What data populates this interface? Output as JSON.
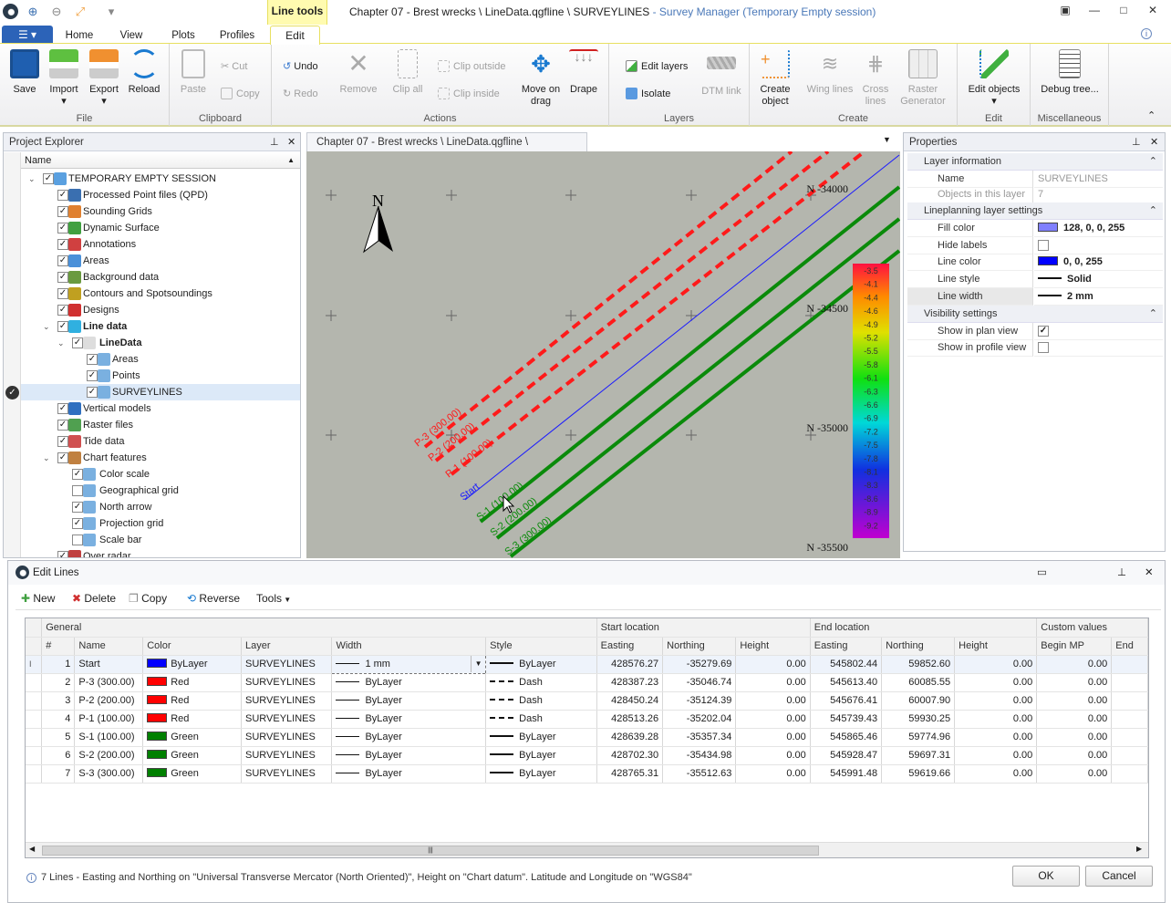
{
  "window": {
    "context_tab": "Line tools",
    "title": "Chapter 07 - Brest wrecks \\ LineData.qgfline \\ SURVEYLINES",
    "subtitle": " - Survey Manager (Temporary Empty session)"
  },
  "ribbon": {
    "tabs": [
      "Home",
      "View",
      "Plots",
      "Profiles",
      "Edit"
    ],
    "active_tab": "Edit",
    "groups": {
      "file": {
        "label": "File",
        "save": "Save",
        "import": "Import",
        "export": "Export",
        "reload": "Reload"
      },
      "clipboard": {
        "label": "Clipboard",
        "paste": "Paste",
        "cut": "Cut",
        "copy": "Copy"
      },
      "actions": {
        "label": "Actions",
        "undo": "Undo",
        "redo": "Redo",
        "remove": "Remove",
        "clip_all": "Clip all",
        "clip_outside": "Clip outside",
        "clip_inside": "Clip inside",
        "move_on_drag": "Move on drag",
        "drape": "Drape"
      },
      "layers": {
        "label": "Layers",
        "edit_layers": "Edit layers",
        "isolate": "Isolate",
        "dtm_link": "DTM link"
      },
      "create": {
        "label": "Create",
        "create_object": "Create object",
        "wing_lines": "Wing lines",
        "cross_lines": "Cross lines",
        "raster_generator": "Raster Generator"
      },
      "edit": {
        "label": "Edit",
        "edit_objects": "Edit objects"
      },
      "misc": {
        "label": "Miscellaneous",
        "debug_tree": "Debug tree..."
      }
    }
  },
  "explorer": {
    "title": "Project Explorer",
    "column": "Name",
    "items": [
      {
        "label": "TEMPORARY EMPTY SESSION",
        "level": 0,
        "expanded": true,
        "checked": true,
        "icon": "session-icon",
        "color": "#5aa0e0"
      },
      {
        "label": "Processed Point files (QPD)",
        "level": 1,
        "checked": true,
        "icon": "point-files-icon",
        "color": "#3a6fb0"
      },
      {
        "label": "Sounding Grids",
        "level": 1,
        "checked": true,
        "icon": "grid-icon",
        "color": "#e08030"
      },
      {
        "label": "Dynamic Surface",
        "level": 1,
        "checked": true,
        "icon": "surface-icon",
        "color": "#40a040"
      },
      {
        "label": "Annotations",
        "level": 1,
        "checked": true,
        "icon": "annotation-icon",
        "color": "#d04040"
      },
      {
        "label": "Areas",
        "level": 1,
        "checked": true,
        "icon": "areas-icon",
        "color": "#4a90d9"
      },
      {
        "label": "Background data",
        "level": 1,
        "checked": true,
        "icon": "background-icon",
        "color": "#6a9a40"
      },
      {
        "label": "Contours and Spotsoundings",
        "level": 1,
        "checked": true,
        "icon": "contours-icon",
        "color": "#c0a020"
      },
      {
        "label": "Designs",
        "level": 1,
        "checked": true,
        "icon": "designs-icon",
        "color": "#d03030"
      },
      {
        "label": "Line data",
        "level": 1,
        "expanded": true,
        "checked": true,
        "bold": true,
        "icon": "line-data-icon",
        "color": "#30b0e0"
      },
      {
        "label": "LineData",
        "level": 2,
        "expanded": true,
        "checked": true,
        "bold": true,
        "icon": "file-icon",
        "color": "#dddddd"
      },
      {
        "label": "Areas",
        "level": 3,
        "checked": true,
        "icon": "layer-icon",
        "color": "#7ab0e0"
      },
      {
        "label": "Points",
        "level": 3,
        "checked": true,
        "icon": "layer-icon",
        "color": "#7ab0e0"
      },
      {
        "label": "SURVEYLINES",
        "level": 3,
        "checked": true,
        "selected": true,
        "icon": "layer-icon",
        "color": "#7ab0e0"
      },
      {
        "label": "Vertical models",
        "level": 1,
        "checked": true,
        "icon": "globe-icon",
        "color": "#3070c0"
      },
      {
        "label": "Raster files",
        "level": 1,
        "checked": true,
        "icon": "raster-icon",
        "color": "#50a050"
      },
      {
        "label": "Tide data",
        "level": 1,
        "checked": true,
        "icon": "tide-icon",
        "color": "#d05050"
      },
      {
        "label": "Chart features",
        "level": 1,
        "expanded": true,
        "checked": true,
        "icon": "chart-features-icon",
        "color": "#c08040"
      },
      {
        "label": "Color scale",
        "level": 2,
        "checked": true,
        "icon": "layer-icon",
        "color": "#7ab0e0"
      },
      {
        "label": "Geographical grid",
        "level": 2,
        "checked": false,
        "icon": "layer-icon",
        "color": "#7ab0e0"
      },
      {
        "label": "North arrow",
        "level": 2,
        "checked": true,
        "icon": "layer-icon",
        "color": "#7ab0e0"
      },
      {
        "label": "Projection grid",
        "level": 2,
        "checked": true,
        "icon": "layer-icon",
        "color": "#7ab0e0"
      },
      {
        "label": "Scale bar",
        "level": 2,
        "checked": false,
        "icon": "layer-icon",
        "color": "#7ab0e0"
      },
      {
        "label": "Over radar",
        "level": 1,
        "checked": true,
        "icon": "radar-icon",
        "color": "#c04040"
      }
    ]
  },
  "map": {
    "tab": "Chapter 07 - Brest wrecks \\ LineData.qgfline \\ SURVEYLINES",
    "north_label": "N",
    "northing_labels": [
      "N -34000",
      "N -34500",
      "N -35000",
      "N -35500"
    ],
    "color_scale": [
      "-3.5",
      "-4.1",
      "-4.4",
      "-4.6",
      "-4.9",
      "-5.2",
      "-5.5",
      "-5.8",
      "-6.1",
      "-6.3",
      "-6.6",
      "-6.9",
      "-7.2",
      "-7.5",
      "-7.8",
      "-8.1",
      "-8.3",
      "-8.6",
      "-8.9",
      "-9.2"
    ],
    "lines": [
      {
        "label": "P-3 (300.00)",
        "color": "#ff1a1a",
        "style": "dash"
      },
      {
        "label": "P-2 (200.00)",
        "color": "#ff1a1a",
        "style": "dash"
      },
      {
        "label": "P-1 (100.00)",
        "color": "#ff1a1a",
        "style": "dash"
      },
      {
        "label": "Start",
        "color": "#1a1aff",
        "style": "thin"
      },
      {
        "label": "S-1 (100.00)",
        "color": "#0a8a0a",
        "style": "solid"
      },
      {
        "label": "S-2 (200.00)",
        "color": "#0a8a0a",
        "style": "solid"
      },
      {
        "label": "S-3 (300.00)",
        "color": "#0a8a0a",
        "style": "solid"
      }
    ]
  },
  "properties": {
    "title": "Properties",
    "sections": {
      "layer_info": "Layer information",
      "lineplanning": "Lineplanning layer settings",
      "visibility": "Visibility settings"
    },
    "name_label": "Name",
    "name_value": "SURVEYLINES",
    "objects_label": "Objects in this layer",
    "objects_value": "7",
    "fill_color_label": "Fill color",
    "fill_color_value": "128, 0, 0, 255",
    "fill_color_swatch": "#8080ff",
    "hide_labels_label": "Hide labels",
    "hide_labels_value": false,
    "line_color_label": "Line color",
    "line_color_value": "0, 0, 255",
    "line_color_swatch": "#0000ff",
    "line_style_label": "Line style",
    "line_style_value": "Solid",
    "line_width_label": "Line width",
    "line_width_value": "2 mm",
    "plan_view_label": "Show in plan view",
    "plan_view_value": true,
    "profile_view_label": "Show in profile view",
    "profile_view_value": false
  },
  "edit_lines": {
    "title": "Edit Lines",
    "toolbar": {
      "new": "New",
      "delete": "Delete",
      "copy": "Copy",
      "reverse": "Reverse",
      "tools": "Tools"
    },
    "groups": {
      "general": "General",
      "start": "Start location",
      "end": "End location",
      "custom": "Custom values"
    },
    "columns": [
      "#",
      "Name",
      "Color",
      "Layer",
      "Width",
      "Style",
      "Easting",
      "Northing",
      "Height",
      "Easting",
      "Northing",
      "Height",
      "Begin MP",
      "End"
    ],
    "rows": [
      {
        "n": "1",
        "name": "Start",
        "color": "ByLayer",
        "swatch": "#0000ff",
        "layer": "SURVEYLINES",
        "width": "1 mm",
        "style": "ByLayer",
        "dash": false,
        "se": "428576.27",
        "sn": "-35279.69",
        "sh": "0.00",
        "ee": "545802.44",
        "en": "59852.60",
        "eh": "0.00",
        "bmp": "0.00"
      },
      {
        "n": "2",
        "name": "P-3 (300.00)",
        "color": "Red",
        "swatch": "#ff0000",
        "layer": "SURVEYLINES",
        "width": "ByLayer",
        "style": "Dash",
        "dash": true,
        "se": "428387.23",
        "sn": "-35046.74",
        "sh": "0.00",
        "ee": "545613.40",
        "en": "60085.55",
        "eh": "0.00",
        "bmp": "0.00"
      },
      {
        "n": "3",
        "name": "P-2 (200.00)",
        "color": "Red",
        "swatch": "#ff0000",
        "layer": "SURVEYLINES",
        "width": "ByLayer",
        "style": "Dash",
        "dash": true,
        "se": "428450.24",
        "sn": "-35124.39",
        "sh": "0.00",
        "ee": "545676.41",
        "en": "60007.90",
        "eh": "0.00",
        "bmp": "0.00"
      },
      {
        "n": "4",
        "name": "P-1 (100.00)",
        "color": "Red",
        "swatch": "#ff0000",
        "layer": "SURVEYLINES",
        "width": "ByLayer",
        "style": "Dash",
        "dash": true,
        "se": "428513.26",
        "sn": "-35202.04",
        "sh": "0.00",
        "ee": "545739.43",
        "en": "59930.25",
        "eh": "0.00",
        "bmp": "0.00"
      },
      {
        "n": "5",
        "name": "S-1 (100.00)",
        "color": "Green",
        "swatch": "#008000",
        "layer": "SURVEYLINES",
        "width": "ByLayer",
        "style": "ByLayer",
        "dash": false,
        "se": "428639.28",
        "sn": "-35357.34",
        "sh": "0.00",
        "ee": "545865.46",
        "en": "59774.96",
        "eh": "0.00",
        "bmp": "0.00"
      },
      {
        "n": "6",
        "name": "S-2 (200.00)",
        "color": "Green",
        "swatch": "#008000",
        "layer": "SURVEYLINES",
        "width": "ByLayer",
        "style": "ByLayer",
        "dash": false,
        "se": "428702.30",
        "sn": "-35434.98",
        "sh": "0.00",
        "ee": "545928.47",
        "en": "59697.31",
        "eh": "0.00",
        "bmp": "0.00"
      },
      {
        "n": "7",
        "name": "S-3 (300.00)",
        "color": "Green",
        "swatch": "#008000",
        "layer": "SURVEYLINES",
        "width": "ByLayer",
        "style": "ByLayer",
        "dash": false,
        "se": "428765.31",
        "sn": "-35512.63",
        "sh": "0.00",
        "ee": "545991.48",
        "en": "59619.66",
        "eh": "0.00",
        "bmp": "0.00"
      }
    ],
    "status": "7 Lines - Easting and Northing on \"Universal Transverse Mercator (North Oriented)\", Height on \"Chart datum\". Latitude and Longitude on \"WGS84\"",
    "ok": "OK",
    "cancel": "Cancel"
  }
}
